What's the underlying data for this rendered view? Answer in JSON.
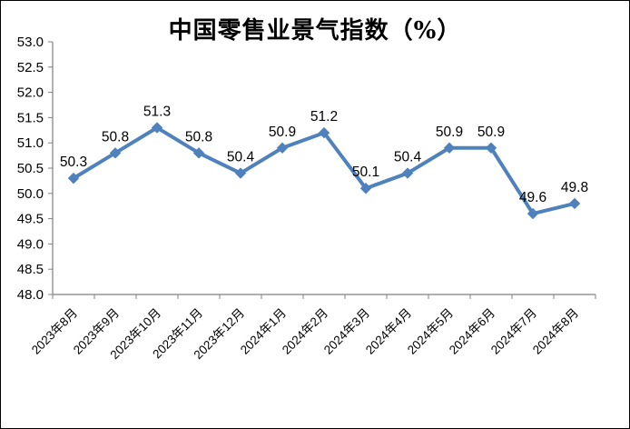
{
  "window": {
    "background": "#FFFFFF",
    "border_color": "#000000"
  },
  "chart_data": {
    "type": "line",
    "title": "中国零售业景气指数（%）",
    "categories": [
      "2023年8月",
      "2023年9月",
      "2023年10月",
      "2023年11月",
      "2023年12月",
      "2024年1月",
      "2024年2月",
      "2024年3月",
      "2024年4月",
      "2024年5月",
      "2024年6月",
      "2024年7月",
      "2024年8月"
    ],
    "values": [
      50.3,
      50.8,
      51.3,
      50.8,
      50.4,
      50.9,
      51.2,
      50.1,
      50.4,
      50.9,
      50.9,
      49.6,
      49.8
    ],
    "data_labels": [
      "50.3",
      "50.8",
      "51.3",
      "50.8",
      "50.4",
      "50.9",
      "51.2",
      "50.1",
      "50.4",
      "50.9",
      "50.9",
      "49.6",
      "49.8"
    ],
    "y_ticks": [
      "53.0",
      "52.5",
      "52.0",
      "51.5",
      "51.0",
      "50.5",
      "50.0",
      "49.5",
      "49.0",
      "48.5",
      "48.0"
    ],
    "ylim": [
      48.0,
      53.0
    ],
    "y_step": 0.5,
    "xlabel": "",
    "ylabel": "",
    "grid": false,
    "legend": "none",
    "marker": "diamond",
    "line_color": "#4F81BD",
    "axis_color": "#808080",
    "text_color": "#000000"
  }
}
